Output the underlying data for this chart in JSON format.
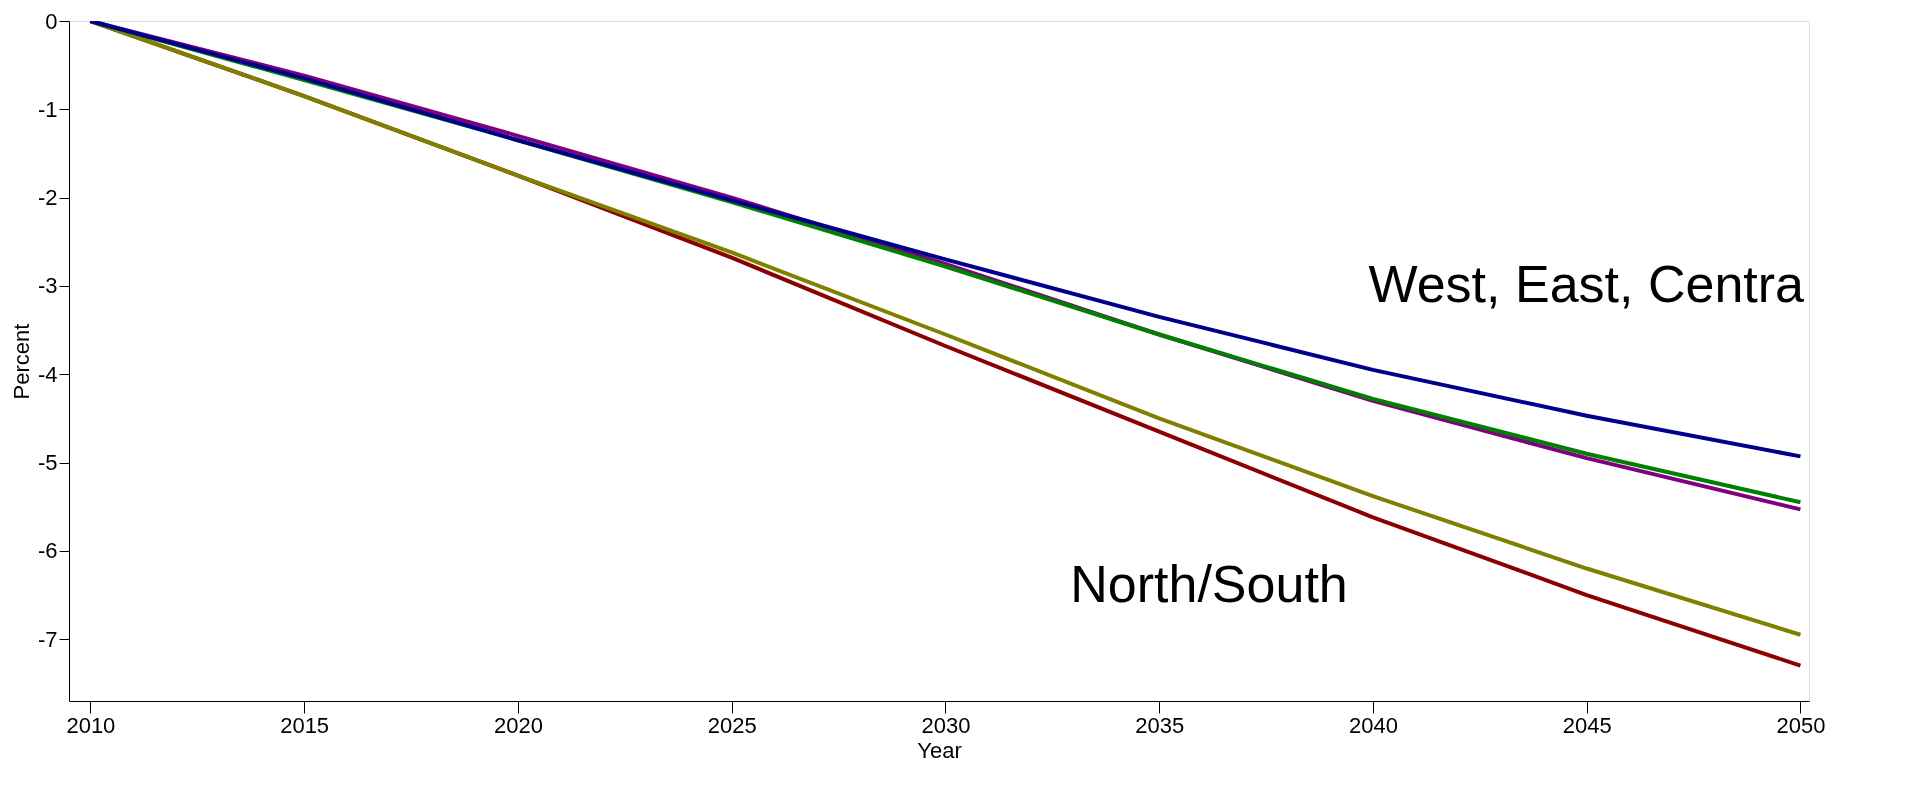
{
  "chart_data": {
    "type": "line",
    "xlabel": "Year",
    "ylabel": "Percent",
    "x": [
      2010,
      2015,
      2020,
      2025,
      2030,
      2035,
      2040,
      2045,
      2050
    ],
    "series": [
      {
        "color": "#00008b",
        "values": [
          0,
          -0.65,
          -1.35,
          -2.03,
          -2.7,
          -3.35,
          -3.95,
          -4.47,
          -4.93
        ]
      },
      {
        "color": "#008000",
        "values": [
          0,
          -0.67,
          -1.35,
          -2.05,
          -2.78,
          -3.55,
          -4.28,
          -4.9,
          -5.45
        ]
      },
      {
        "color": "#800080",
        "values": [
          0,
          -0.62,
          -1.3,
          -2.0,
          -2.75,
          -3.55,
          -4.3,
          -4.95,
          -5.53
        ]
      },
      {
        "color": "#808000",
        "values": [
          0,
          -0.85,
          -1.75,
          -2.62,
          -3.55,
          -4.5,
          -5.38,
          -6.2,
          -6.95
        ]
      },
      {
        "color": "#8b0000",
        "values": [
          0,
          -0.85,
          -1.75,
          -2.68,
          -3.68,
          -4.65,
          -5.62,
          -6.5,
          -7.3
        ]
      }
    ],
    "annotations": [
      "West, East, Centra",
      "North/South"
    ],
    "xlim": [
      2009.5,
      2050.2
    ],
    "ylim": [
      -7.7,
      0
    ],
    "xticks": [
      2010,
      2015,
      2020,
      2025,
      2030,
      2035,
      2040,
      2045,
      2050
    ],
    "yticks": [
      -7,
      -6,
      -5,
      -4,
      -3,
      -2,
      -1,
      0
    ],
    "grid": false,
    "legend": false,
    "marker": "none",
    "line_style": "solid"
  }
}
